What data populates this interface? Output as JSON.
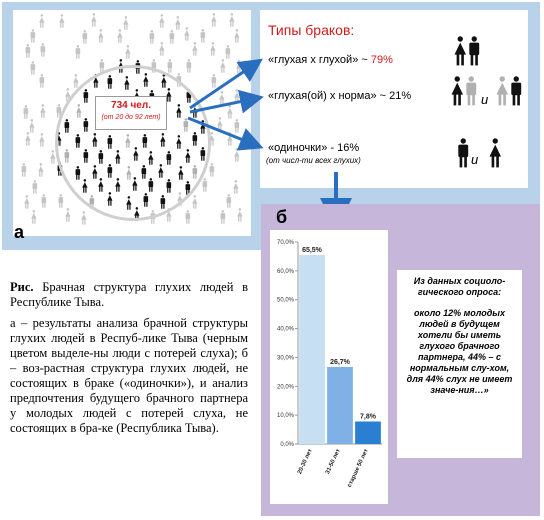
{
  "panel_a": {
    "label": "а",
    "count": "734 чел.",
    "age_range": "(от 20 до 92 лет)",
    "types_title": "Типы браков:",
    "types": [
      {
        "name": "«глухая  х  глухой» ~ ",
        "pct": "79%",
        "pct_color": "#d01a1a"
      },
      {
        "name": "«глухая(ой)  х  норма» ~ 21%",
        "pct": ""
      },
      {
        "name": "«одиночки» - 16%",
        "pct": ""
      }
    ],
    "types_note": "(от числ-ти всех глухих)",
    "and_word": "и",
    "colors": {
      "deaf": "#111111",
      "hearing": "#b0b0b0",
      "accent": "#d01a1a",
      "arrow": "#2a6fbf"
    }
  },
  "panel_b": {
    "label": "б",
    "chart_data": {
      "type": "bar",
      "categories": [
        "20-30 лет",
        "31-50 лет",
        "старше 50 лет"
      ],
      "values": [
        65.5,
        26.7,
        7.8
      ],
      "value_labels": [
        "65,5%",
        "26,7%",
        "7,8%"
      ],
      "ylim": [
        0,
        70
      ],
      "yticks": [
        "0,0%",
        "10,0%",
        "20,0%",
        "30,0%",
        "40,0%",
        "50,0%",
        "60,0%",
        "70,0%"
      ],
      "bar_colors": [
        "#c7dff2",
        "#7fb1e6",
        "#2b7fd0"
      ]
    },
    "quote": [
      "Из данных социоло-гического опроса:",
      "около 12% молодых людей в будущем хотели бы иметь глухого брачного партнера, 44% – с нормальным слу-хом, для 44% слух не имеет значе-ния…»"
    ]
  },
  "caption": {
    "lead": "Рис.",
    "title": " Брачная структура глухих людей в Республике Тыва.",
    "body": "а – результаты анализа брачной структуры глухих людей в Респуб-лике Тыва (черным цветом выделе-ны люди с потерей слуха); б – воз-растная структура глухих людей, не состоящих в браке («одиночки»), и анализ предпочтения будущего брачного партнера у молодых людей с потерей слуха, не состоящих в бра-ке (Республика Тыва)."
  }
}
